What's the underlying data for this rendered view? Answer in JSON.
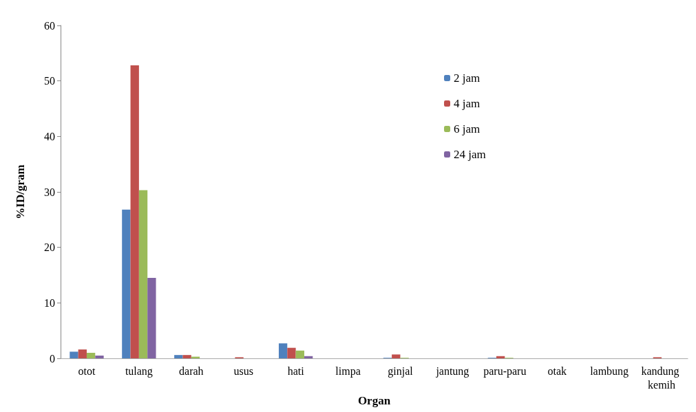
{
  "chart_data": {
    "type": "bar",
    "xlabel": "Organ",
    "ylabel": "%ID/gram",
    "categories": [
      "otot",
      "tulang",
      "darah",
      "usus",
      "hati",
      "limpa",
      "ginjal",
      "jantung",
      "paru-paru",
      "otak",
      "lambung",
      "kandung kemih"
    ],
    "series": [
      {
        "name": "2 jam",
        "color": "#4f81bd",
        "values": [
          1.2,
          26.8,
          0.6,
          0,
          2.7,
          0,
          0.1,
          0,
          0.1,
          0,
          0,
          0
        ]
      },
      {
        "name": "4 jam",
        "color": "#c0504d",
        "values": [
          1.6,
          52.8,
          0.6,
          0.2,
          1.9,
          0,
          0.7,
          0,
          0.4,
          0,
          0,
          0.2
        ]
      },
      {
        "name": "6 jam",
        "color": "#9bbb59",
        "values": [
          1.0,
          30.3,
          0.3,
          0,
          1.4,
          0,
          0.1,
          0,
          0.1,
          0,
          0,
          0
        ]
      },
      {
        "name": "24 jam",
        "color": "#8064a2",
        "values": [
          0.5,
          14.5,
          0,
          0,
          0.4,
          0,
          0,
          0,
          0,
          0,
          0,
          0
        ]
      }
    ],
    "ylim": [
      0,
      60
    ],
    "yticks": [
      0,
      10,
      20,
      30,
      40,
      50,
      60
    ],
    "grid": false,
    "legend": "top right"
  }
}
